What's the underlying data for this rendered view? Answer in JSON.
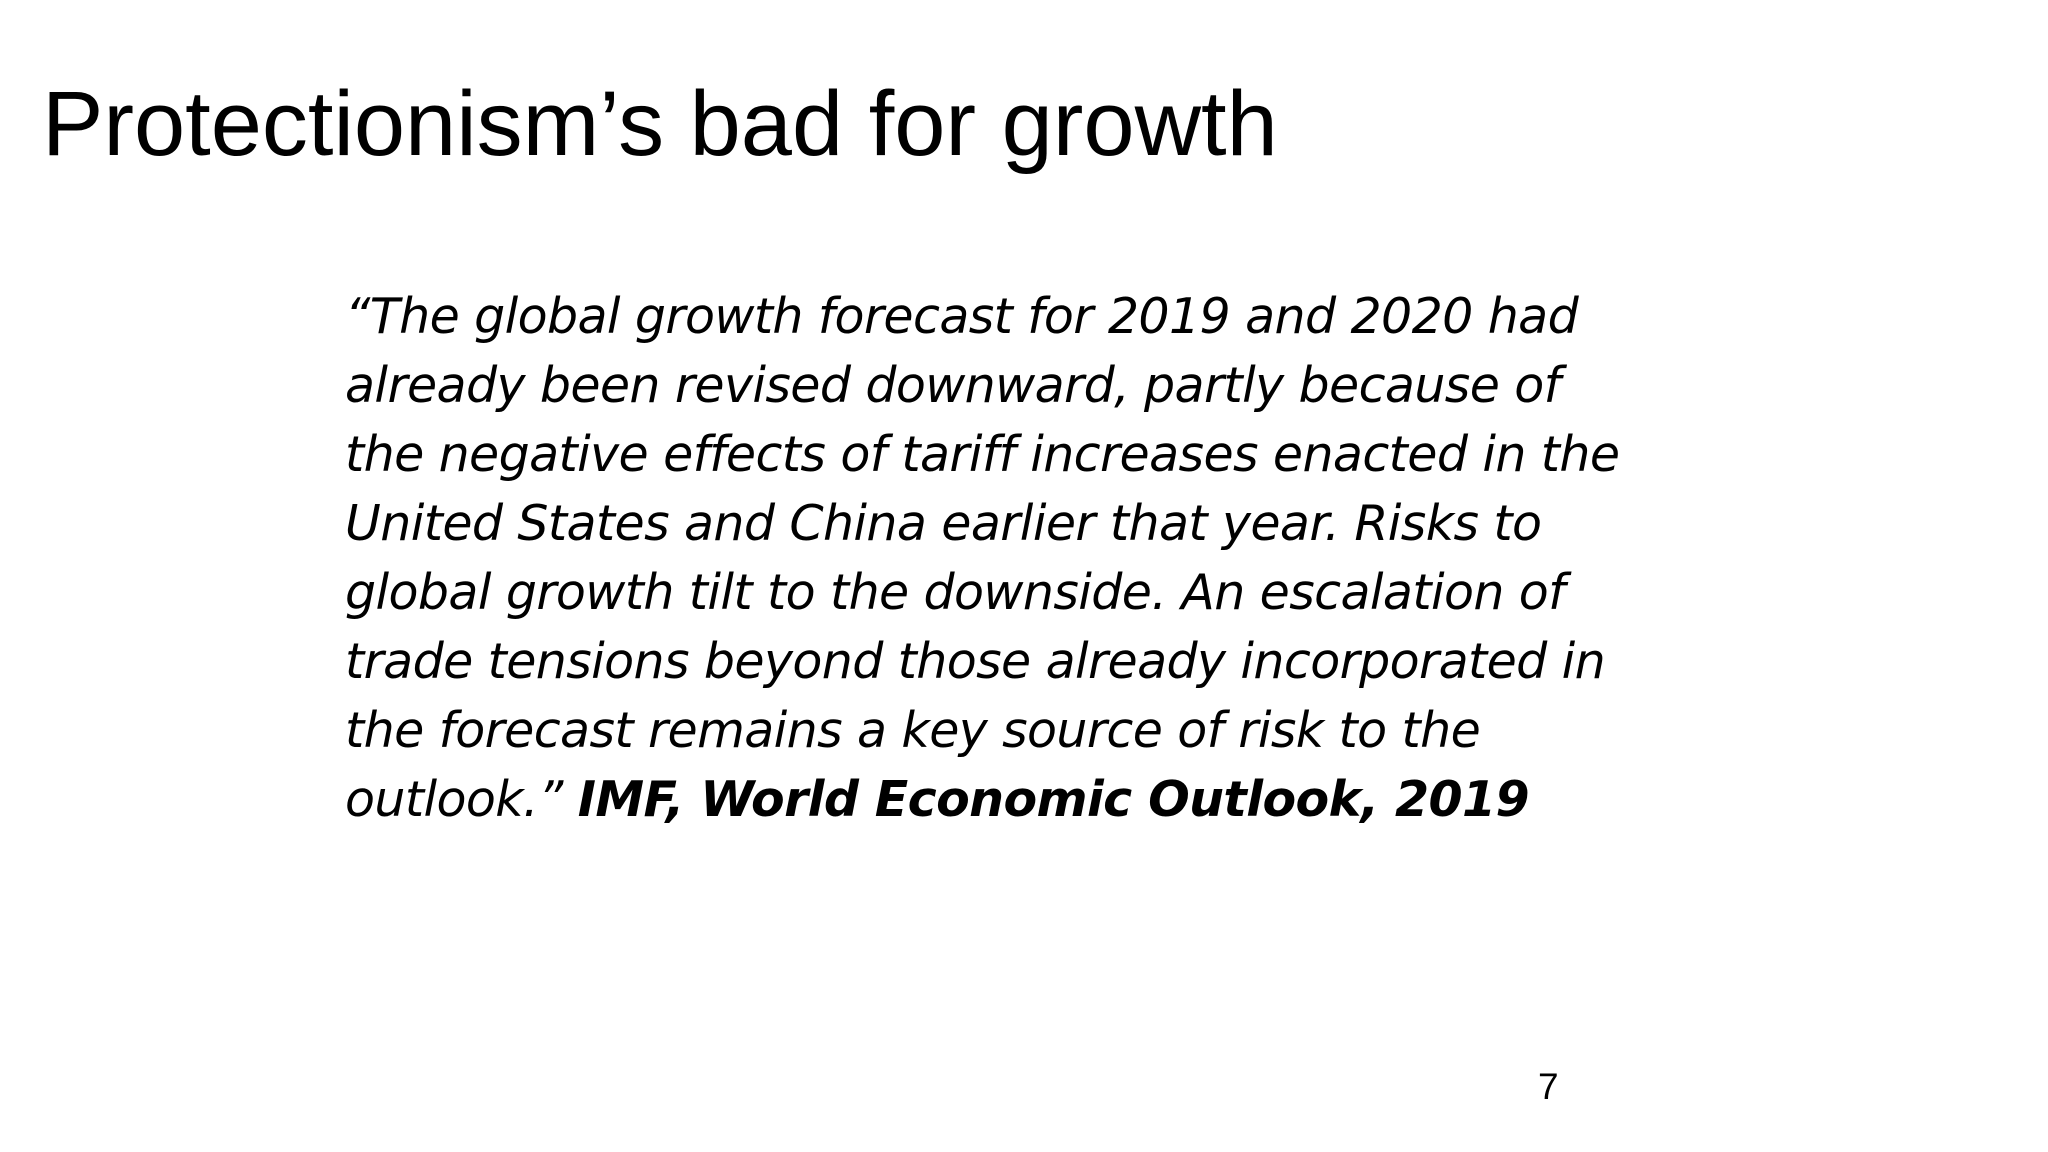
{
  "slide": {
    "title": "Protectionism’s bad for growth",
    "quote": {
      "lines": [
        "“The global growth forecast for 2019 and 2020 had",
        "already been revised downward, partly because of",
        "the negative effects of tariff increases enacted in the",
        "United States and China earlier that year. Risks to",
        "global growth tilt to the downside. An escalation of",
        "trade tensions beyond those already incorporated in",
        "the forecast remains a key source of risk to the",
        "outlook.”"
      ],
      "citation": "IMF, World Economic Outlook, 2019"
    },
    "page_number": "7"
  }
}
